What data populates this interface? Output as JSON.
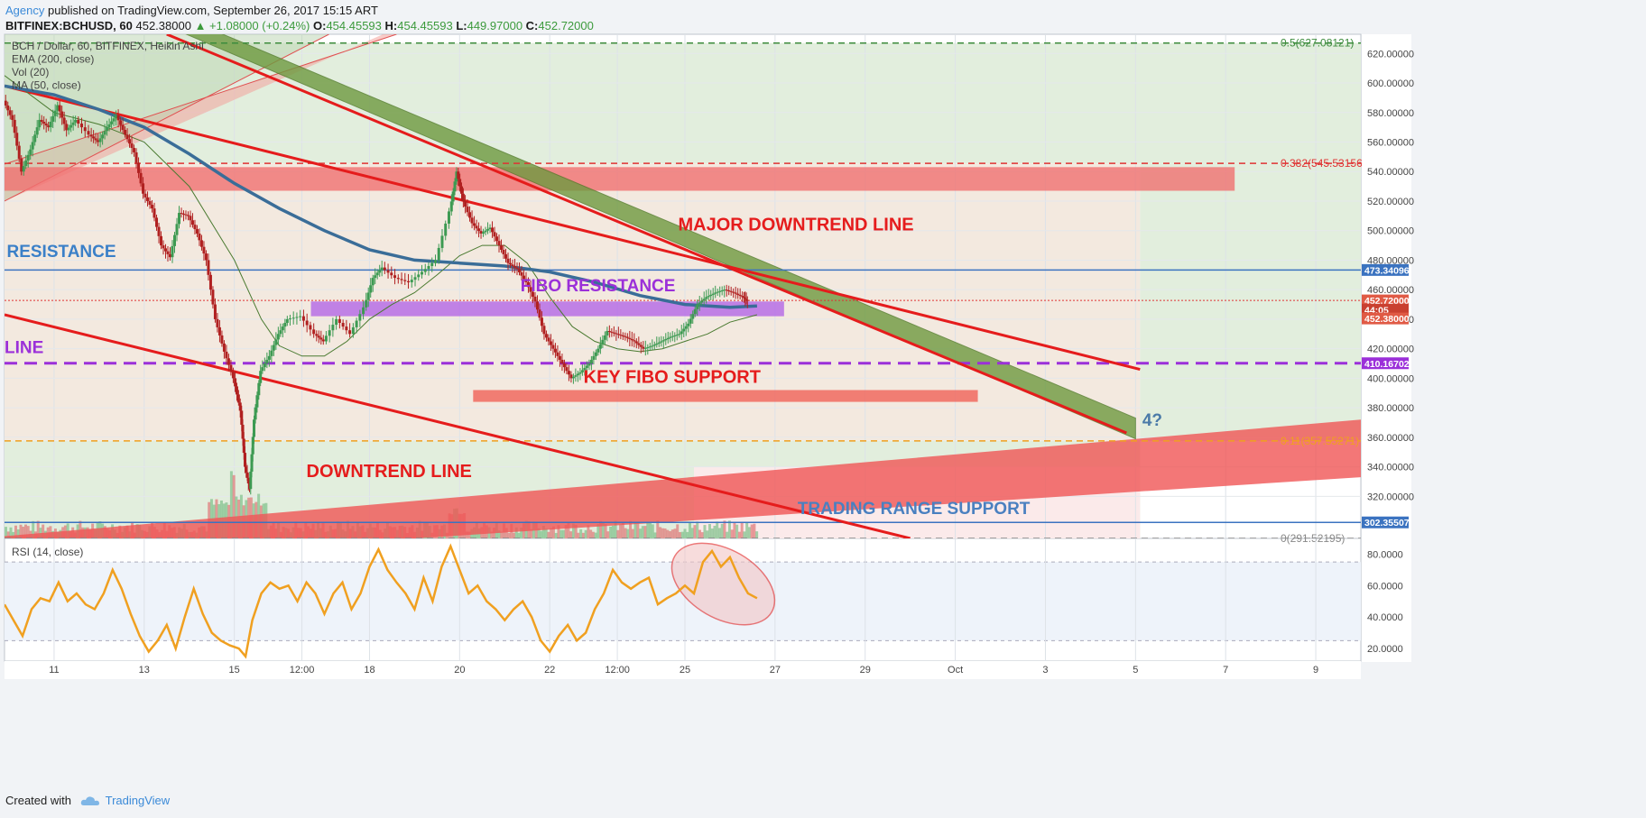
{
  "header": {
    "author": "Agency",
    "published": " published on TradingView.com, September 26, 2017 15:15 ART"
  },
  "ticker": {
    "symbol": "BITFINEX:BCHUSD, 60",
    "price": "452.38000",
    "change": "▲ +1.08000 (+0.24%)",
    "o_label": "O:",
    "o": "454.45593",
    "h_label": "H:",
    "h": "454.45593",
    "l_label": "L:",
    "l": "449.97000",
    "c_label": "C:",
    "c": "452.72000"
  },
  "footer": {
    "created": "Created with",
    "brand": "TradingView"
  },
  "chart_data": {
    "type": "line",
    "legend": [
      "BCH / Dollar, 60, BITFINEX, Heikin Ashi",
      "EMA (200, close)",
      "Vol (20)",
      "MA (50, close)"
    ],
    "price_axis": {
      "ylim": [
        291.5,
        633
      ],
      "ticks": [
        620,
        600,
        580,
        560,
        540,
        520,
        500,
        480,
        460,
        440,
        420,
        400,
        380,
        360,
        340,
        320
      ],
      "tick_labels": [
        "620.00000",
        "600.00000",
        "580.00000",
        "560.00000",
        "540.00000",
        "520.00000",
        "500.00000",
        "480.00000",
        "460.00000",
        "440.00000",
        "420.00000",
        "400.00000",
        "380.00000",
        "360.00000",
        "340.00000",
        "320.00000"
      ]
    },
    "rsi_axis": {
      "ylim": [
        12,
        90
      ],
      "ticks": [
        80,
        60,
        40,
        20
      ],
      "tick_labels": [
        "80.0000",
        "60.0000",
        "40.0000",
        "20.0000"
      ],
      "bands": [
        25,
        75
      ],
      "label": "RSI (14, close)"
    },
    "x_axis": {
      "labels": [
        {
          "t": 0.0,
          "label": "11"
        },
        {
          "t": 2.0,
          "label": "13"
        },
        {
          "t": 4.0,
          "label": "15"
        },
        {
          "t": 5.5,
          "label": "12:00"
        },
        {
          "t": 7.0,
          "label": "18"
        },
        {
          "t": 9.0,
          "label": "20"
        },
        {
          "t": 11.0,
          "label": "22"
        },
        {
          "t": 12.5,
          "label": "12:00"
        },
        {
          "t": 14.0,
          "label": "25"
        },
        {
          "t": 16.0,
          "label": "27"
        },
        {
          "t": 18.0,
          "label": "29"
        },
        {
          "t": 20.0,
          "label": "Oct"
        },
        {
          "t": 22.0,
          "label": "3"
        },
        {
          "t": 24.0,
          "label": "5"
        },
        {
          "t": 26.0,
          "label": "7"
        },
        {
          "t": 28.0,
          "label": "9"
        }
      ],
      "xlim": [
        -1.1,
        29.0
      ]
    },
    "price_path": [
      [
        -1.1,
        588
      ],
      [
        -0.9,
        575
      ],
      [
        -0.7,
        540
      ],
      [
        -0.5,
        555
      ],
      [
        -0.3,
        575
      ],
      [
        -0.1,
        570
      ],
      [
        0.1,
        585
      ],
      [
        0.3,
        568
      ],
      [
        0.5,
        575
      ],
      [
        0.8,
        565
      ],
      [
        1.0,
        560
      ],
      [
        1.2,
        570
      ],
      [
        1.4,
        578
      ],
      [
        1.6,
        565
      ],
      [
        1.8,
        553
      ],
      [
        2.0,
        525
      ],
      [
        2.2,
        515
      ],
      [
        2.4,
        490
      ],
      [
        2.6,
        482
      ],
      [
        2.8,
        512
      ],
      [
        3.0,
        510
      ],
      [
        3.2,
        498
      ],
      [
        3.4,
        480
      ],
      [
        3.6,
        440
      ],
      [
        3.8,
        418
      ],
      [
        4.0,
        400
      ],
      [
        4.15,
        378
      ],
      [
        4.25,
        340
      ],
      [
        4.35,
        325
      ],
      [
        4.45,
        372
      ],
      [
        4.6,
        405
      ],
      [
        4.8,
        415
      ],
      [
        5.0,
        430
      ],
      [
        5.2,
        440
      ],
      [
        5.5,
        442
      ],
      [
        5.8,
        430
      ],
      [
        6.0,
        425
      ],
      [
        6.3,
        440
      ],
      [
        6.6,
        430
      ],
      [
        6.9,
        448
      ],
      [
        7.1,
        468
      ],
      [
        7.3,
        475
      ],
      [
        7.6,
        468
      ],
      [
        7.9,
        465
      ],
      [
        8.2,
        472
      ],
      [
        8.5,
        480
      ],
      [
        8.8,
        513
      ],
      [
        8.95,
        540
      ],
      [
        9.1,
        520
      ],
      [
        9.3,
        505
      ],
      [
        9.5,
        498
      ],
      [
        9.7,
        502
      ],
      [
        9.9,
        490
      ],
      [
        10.1,
        478
      ],
      [
        10.3,
        474
      ],
      [
        10.5,
        465
      ],
      [
        10.7,
        452
      ],
      [
        10.9,
        430
      ],
      [
        11.1,
        420
      ],
      [
        11.3,
        410
      ],
      [
        11.5,
        400
      ],
      [
        11.7,
        404
      ],
      [
        11.9,
        410
      ],
      [
        12.1,
        420
      ],
      [
        12.3,
        432
      ],
      [
        12.5,
        430
      ],
      [
        12.7,
        428
      ],
      [
        12.9,
        425
      ],
      [
        13.1,
        420
      ],
      [
        13.3,
        422
      ],
      [
        13.5,
        425
      ],
      [
        13.7,
        428
      ],
      [
        13.9,
        430
      ],
      [
        14.1,
        437
      ],
      [
        14.3,
        450
      ],
      [
        14.5,
        455
      ],
      [
        14.7,
        458
      ],
      [
        14.9,
        460
      ],
      [
        15.1,
        458
      ],
      [
        15.3,
        455
      ],
      [
        15.4,
        452.38
      ]
    ],
    "ema200_path": [
      [
        -1.1,
        598
      ],
      [
        0.0,
        592
      ],
      [
        1.0,
        582
      ],
      [
        2.0,
        570
      ],
      [
        3.0,
        552
      ],
      [
        4.0,
        532
      ],
      [
        5.0,
        515
      ],
      [
        6.0,
        500
      ],
      [
        7.0,
        487
      ],
      [
        8.0,
        480
      ],
      [
        9.0,
        478
      ],
      [
        10.0,
        476
      ],
      [
        11.0,
        472
      ],
      [
        12.0,
        465
      ],
      [
        13.0,
        456
      ],
      [
        14.0,
        450
      ],
      [
        15.0,
        448
      ],
      [
        15.6,
        449
      ]
    ],
    "ma50_path": [
      [
        -1.1,
        605
      ],
      [
        0.0,
        580
      ],
      [
        1.0,
        572
      ],
      [
        2.0,
        560
      ],
      [
        3.0,
        530
      ],
      [
        4.0,
        480
      ],
      [
        4.6,
        440
      ],
      [
        5.0,
        422
      ],
      [
        5.5,
        415
      ],
      [
        6.0,
        415
      ],
      [
        6.5,
        425
      ],
      [
        7.0,
        440
      ],
      [
        7.5,
        450
      ],
      [
        8.0,
        458
      ],
      [
        8.5,
        470
      ],
      [
        9.0,
        483
      ],
      [
        9.5,
        490
      ],
      [
        10.0,
        490
      ],
      [
        10.5,
        478
      ],
      [
        11.0,
        455
      ],
      [
        11.5,
        435
      ],
      [
        12.0,
        425
      ],
      [
        12.5,
        420
      ],
      [
        13.0,
        418
      ],
      [
        13.5,
        420
      ],
      [
        14.0,
        425
      ],
      [
        14.5,
        430
      ],
      [
        15.0,
        438
      ],
      [
        15.6,
        443
      ]
    ],
    "rsi_path": [
      [
        -1.1,
        48
      ],
      [
        -0.9,
        38
      ],
      [
        -0.7,
        28
      ],
      [
        -0.5,
        45
      ],
      [
        -0.3,
        52
      ],
      [
        -0.1,
        50
      ],
      [
        0.1,
        62
      ],
      [
        0.3,
        50
      ],
      [
        0.5,
        55
      ],
      [
        0.7,
        48
      ],
      [
        0.9,
        45
      ],
      [
        1.1,
        55
      ],
      [
        1.3,
        70
      ],
      [
        1.5,
        58
      ],
      [
        1.7,
        42
      ],
      [
        1.9,
        28
      ],
      [
        2.1,
        18
      ],
      [
        2.3,
        25
      ],
      [
        2.5,
        35
      ],
      [
        2.7,
        20
      ],
      [
        2.9,
        40
      ],
      [
        3.1,
        58
      ],
      [
        3.3,
        42
      ],
      [
        3.5,
        30
      ],
      [
        3.7,
        25
      ],
      [
        3.9,
        22
      ],
      [
        4.1,
        20
      ],
      [
        4.25,
        15
      ],
      [
        4.4,
        38
      ],
      [
        4.6,
        55
      ],
      [
        4.8,
        62
      ],
      [
        5.0,
        58
      ],
      [
        5.2,
        60
      ],
      [
        5.4,
        50
      ],
      [
        5.6,
        62
      ],
      [
        5.8,
        55
      ],
      [
        6.0,
        42
      ],
      [
        6.2,
        55
      ],
      [
        6.4,
        62
      ],
      [
        6.6,
        45
      ],
      [
        6.8,
        55
      ],
      [
        7.0,
        72
      ],
      [
        7.2,
        83
      ],
      [
        7.4,
        70
      ],
      [
        7.6,
        62
      ],
      [
        7.8,
        55
      ],
      [
        8.0,
        45
      ],
      [
        8.2,
        65
      ],
      [
        8.4,
        50
      ],
      [
        8.6,
        72
      ],
      [
        8.8,
        85
      ],
      [
        9.0,
        70
      ],
      [
        9.2,
        55
      ],
      [
        9.4,
        60
      ],
      [
        9.6,
        50
      ],
      [
        9.8,
        45
      ],
      [
        10.0,
        38
      ],
      [
        10.2,
        45
      ],
      [
        10.4,
        50
      ],
      [
        10.6,
        40
      ],
      [
        10.8,
        25
      ],
      [
        11.0,
        18
      ],
      [
        11.2,
        28
      ],
      [
        11.4,
        35
      ],
      [
        11.6,
        25
      ],
      [
        11.8,
        30
      ],
      [
        12.0,
        45
      ],
      [
        12.2,
        55
      ],
      [
        12.4,
        70
      ],
      [
        12.6,
        62
      ],
      [
        12.8,
        58
      ],
      [
        13.0,
        62
      ],
      [
        13.2,
        65
      ],
      [
        13.4,
        48
      ],
      [
        13.6,
        52
      ],
      [
        13.8,
        55
      ],
      [
        14.0,
        60
      ],
      [
        14.2,
        55
      ],
      [
        14.4,
        75
      ],
      [
        14.6,
        82
      ],
      [
        14.8,
        72
      ],
      [
        15.0,
        78
      ],
      [
        15.2,
        65
      ],
      [
        15.4,
        55
      ],
      [
        15.6,
        52
      ]
    ],
    "volume": {
      "label": "Vol (20)"
    },
    "horizontal_lines": [
      {
        "name": "0.5",
        "price": 627.08121,
        "color": "#3d8c3d",
        "style": "dashed",
        "label": "0.5(627.08121)"
      },
      {
        "name": "0.382",
        "price": 545.53156,
        "color": "#e03333",
        "style": "dashed",
        "label": "0.382(545.53156)"
      },
      {
        "name": "0.11",
        "price": 357.55271,
        "color": "#f0a020",
        "style": "dashed",
        "label": "0.11(357.55271)"
      },
      {
        "name": "0",
        "price": 291.52195,
        "color": "#888888",
        "style": "dashed",
        "label": "0(291.52195)"
      },
      {
        "name": "resistance",
        "price": 473.34096,
        "color": "#3b73c0",
        "style": "solid"
      },
      {
        "name": "range-support",
        "price": 302.35507,
        "color": "#3b73c0",
        "style": "solid"
      },
      {
        "name": "fibo-support",
        "price": 410.16702,
        "color": "#9b30d9",
        "style": "dashed"
      },
      {
        "name": "last",
        "price": 452.72,
        "color": "#e03333",
        "style": "dotted"
      }
    ],
    "price_badges": [
      {
        "price": 473.34096,
        "label": "473.34096",
        "color": "#3b73c0"
      },
      {
        "price": 452.72,
        "label": "452.72000",
        "color": "#e05a45"
      },
      {
        "price": 446.5,
        "label": "44:05",
        "color": "#c94030"
      },
      {
        "price": 440.5,
        "label": "452.38000",
        "color": "#e05a45"
      },
      {
        "price": 410.16702,
        "label": "410.16702",
        "color": "#9b30d9"
      },
      {
        "price": 302.35507,
        "label": "302.35507",
        "color": "#3b73c0"
      }
    ],
    "annotations": [
      {
        "text": "MAJOR DOWNTREND LINE",
        "t": 13.85,
        "price": 500,
        "color": "#e51c1c"
      },
      {
        "text": "RESISTANCE",
        "t": -1.05,
        "price": 482,
        "color": "#3b80c8"
      },
      {
        "text": "FIBO RESISTANCE",
        "t": 10.35,
        "price": 459,
        "color": "#9b30d9"
      },
      {
        "text": "LINE",
        "t": -1.1,
        "price": 417,
        "color": "#9b30d9"
      },
      {
        "text": "KEY FIBO SUPPORT",
        "t": 11.75,
        "price": 397,
        "color": "#e51c1c"
      },
      {
        "text": "4?",
        "t": 24.15,
        "price": 368,
        "color": "#4a7aa8"
      },
      {
        "text": "DOWNTREND LINE",
        "t": 5.6,
        "price": 333,
        "color": "#e51c1c"
      },
      {
        "text": "TRADING RANGE SUPPORT",
        "t": 16.5,
        "price": 308,
        "color": "#4a80c0"
      }
    ]
  }
}
